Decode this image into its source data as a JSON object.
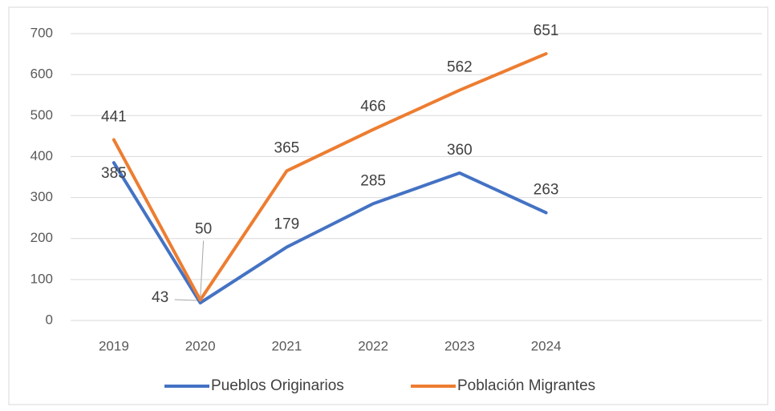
{
  "chart_data": {
    "type": "line",
    "categories": [
      "2019",
      "2020",
      "2021",
      "2022",
      "2023",
      "2024",
      null,
      null
    ],
    "series": [
      {
        "name": "Pueblos Originarios",
        "color": "#4472c4",
        "values": [
          385,
          43,
          179,
          285,
          360,
          263,
          null,
          null
        ]
      },
      {
        "name": "Población Migrantes",
        "color": "#ed7d31",
        "values": [
          441,
          50,
          365,
          466,
          562,
          651,
          null,
          null
        ]
      }
    ],
    "ylim": [
      0,
      700
    ],
    "yticks": [
      0,
      100,
      200,
      300,
      400,
      500,
      600,
      700
    ],
    "grid": true,
    "legend": "bottom"
  }
}
